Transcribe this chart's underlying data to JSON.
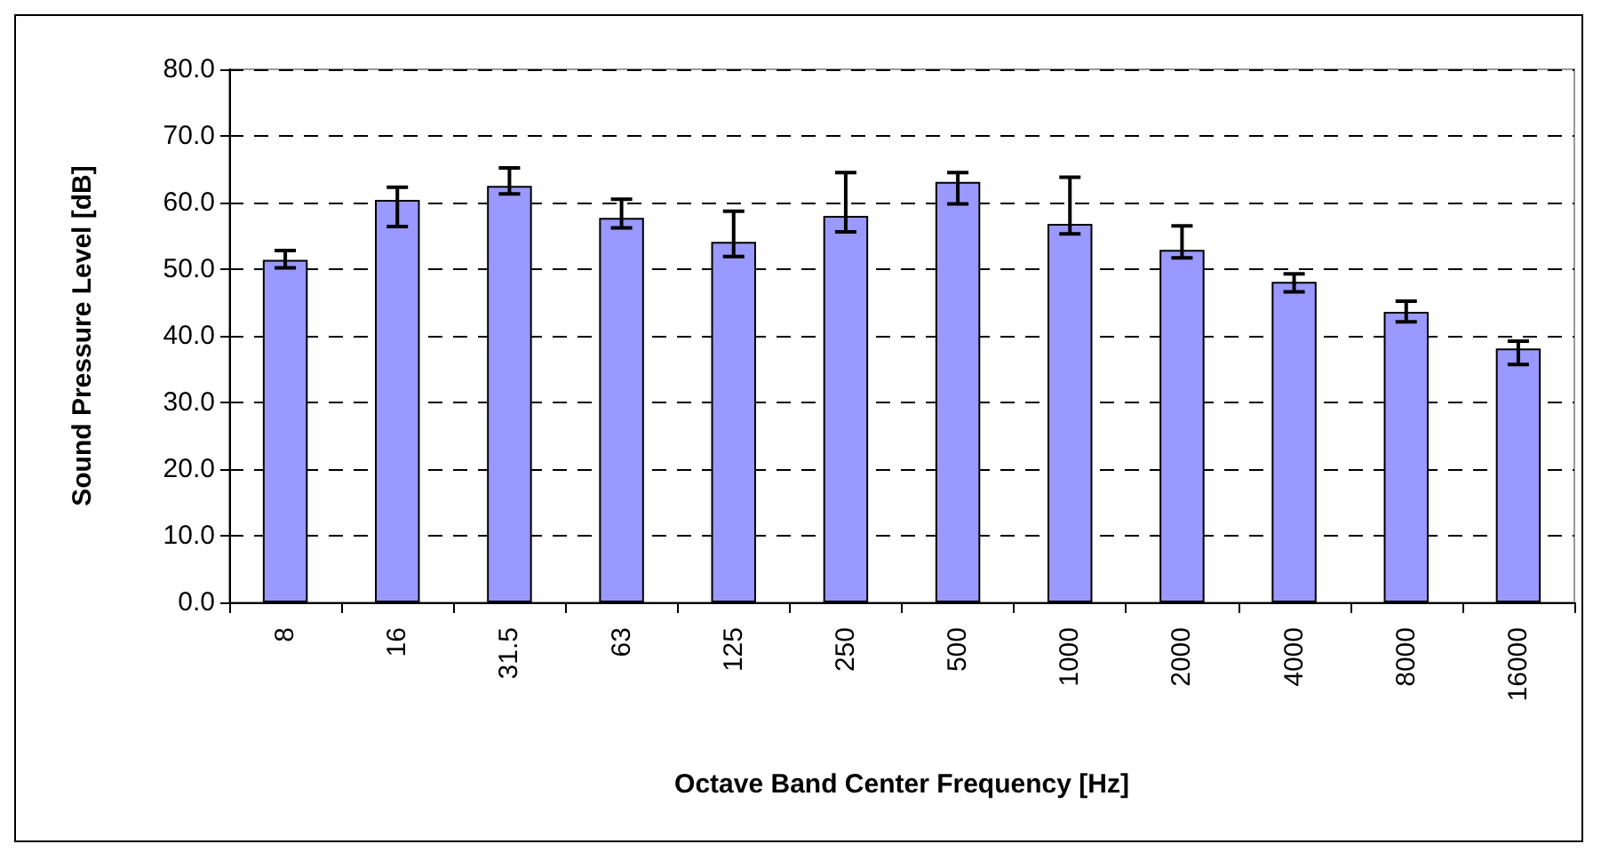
{
  "chart_data": {
    "type": "bar",
    "xlabel": "Octave Band Center Frequency [Hz]",
    "ylabel": "Sound Pressure Level [dB]",
    "categories": [
      "8",
      "16",
      "31.5",
      "63",
      "125",
      "250",
      "500",
      "1000",
      "2000",
      "4000",
      "8000",
      "16000"
    ],
    "series": [
      {
        "color": "#9999ff",
        "values": [
          51.4,
          60.4,
          62.5,
          57.7,
          54.1,
          58.0,
          63.1,
          56.8,
          52.9,
          48.1,
          43.6,
          38.1
        ],
        "errors": [
          [
            50.2,
            52.8
          ],
          [
            56.4,
            62.3
          ],
          [
            61.3,
            65.2
          ],
          [
            56.2,
            60.5
          ],
          [
            51.9,
            58.7
          ],
          [
            55.6,
            64.5
          ],
          [
            59.8,
            64.5
          ],
          [
            55.3,
            63.8
          ],
          [
            51.7,
            56.5
          ],
          [
            46.6,
            49.3
          ],
          [
            42.1,
            45.2
          ],
          [
            35.7,
            39.2
          ]
        ]
      }
    ],
    "ylim": [
      0,
      80
    ],
    "yticks": [
      {
        "value": 0,
        "label": "0.0"
      },
      {
        "value": 10,
        "label": "10.0"
      },
      {
        "value": 20,
        "label": "20.0"
      },
      {
        "value": 30,
        "label": "30.0"
      },
      {
        "value": 40,
        "label": "40.0"
      },
      {
        "value": 50,
        "label": "50.0"
      },
      {
        "value": 60,
        "label": "60.0"
      },
      {
        "value": 70,
        "label": "70.0"
      },
      {
        "value": 80,
        "label": "80.0"
      }
    ],
    "grid": "y"
  }
}
